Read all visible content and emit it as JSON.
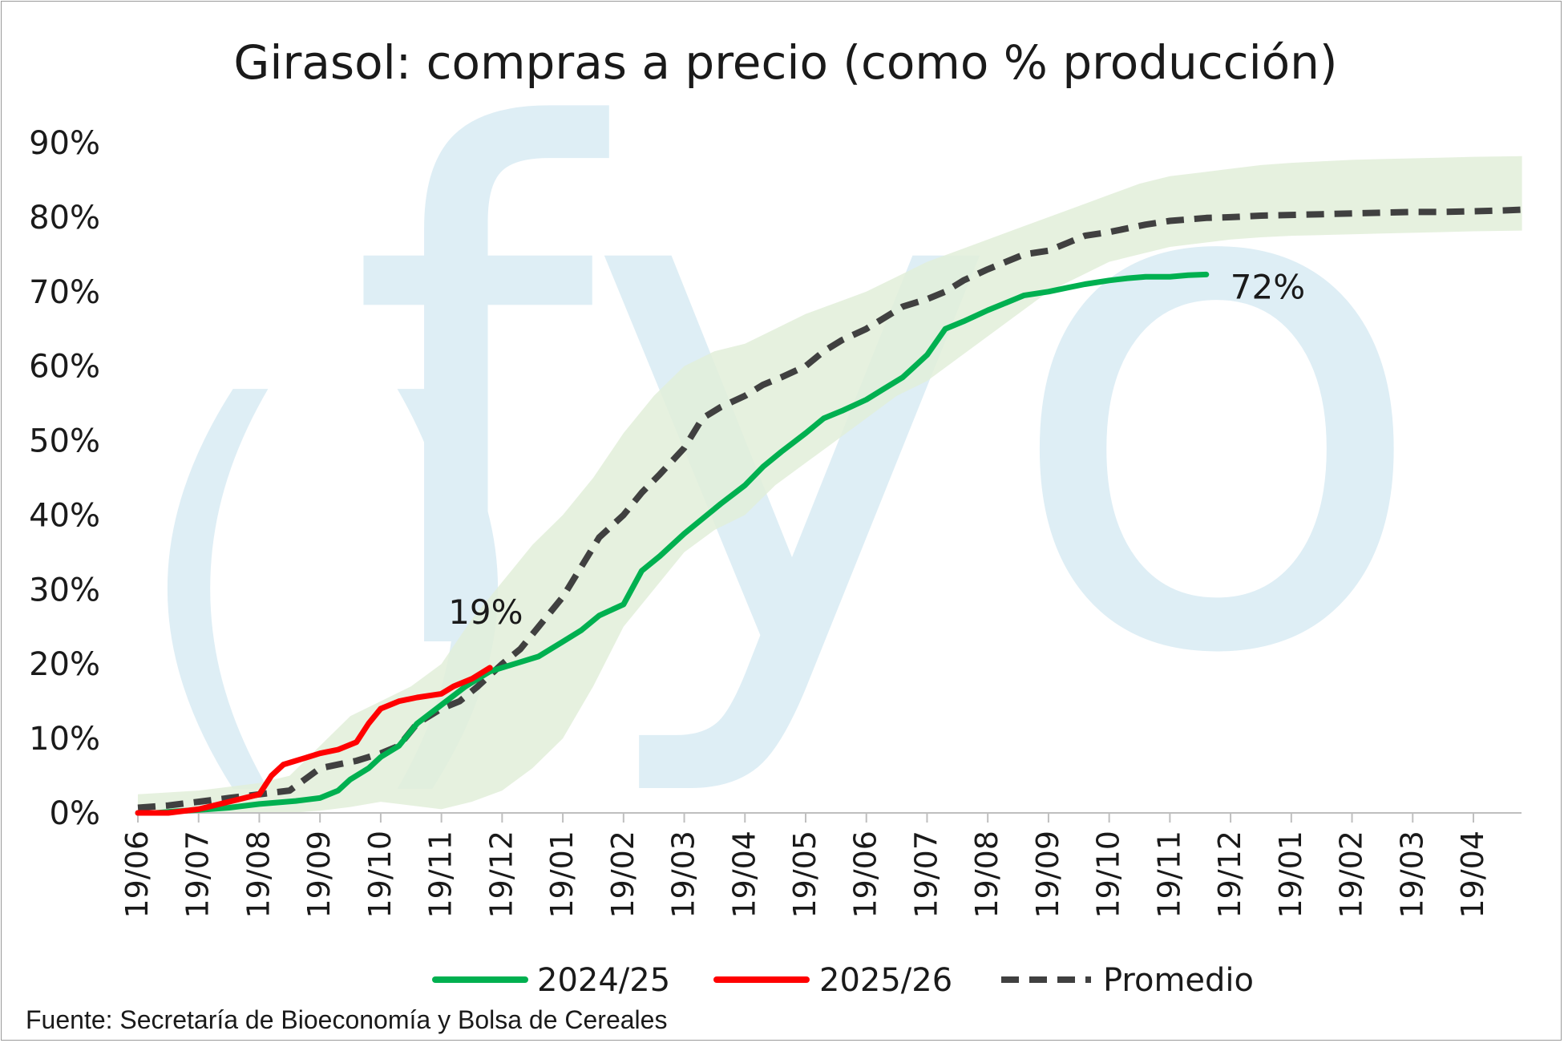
{
  "chart_data": {
    "type": "line",
    "title": "Girasol: compras a precio (como % producción)",
    "source": "Fuente: Secretaría de Bioeconomía y Bolsa de Cereales",
    "watermark": "fyo",
    "ylim": [
      0,
      90
    ],
    "y_ticks": [
      "0%",
      "10%",
      "20%",
      "30%",
      "40%",
      "50%",
      "60%",
      "70%",
      "80%",
      "90%"
    ],
    "x_ticks": [
      "19/06",
      "19/07",
      "19/08",
      "19/09",
      "19/10",
      "19/11",
      "19/12",
      "19/01",
      "19/02",
      "19/03",
      "19/04",
      "19/05",
      "19/06",
      "19/07",
      "19/08",
      "19/09",
      "19/10",
      "19/11",
      "19/12",
      "19/01",
      "19/02",
      "19/03",
      "19/04"
    ],
    "grid": false,
    "legend_position": "bottom",
    "colors": {
      "s2425": "#00b050",
      "s2526": "#ff0000",
      "avg": "#404040",
      "band": "#e2efd9",
      "watermark": "#deeef5"
    },
    "series": [
      {
        "name": "2024/25",
        "x": [
          0,
          0.3,
          0.6,
          1,
          1.5,
          2,
          2.3,
          2.6,
          3,
          3.3,
          3.5,
          3.8,
          4,
          4.3,
          4.6,
          5,
          5.4,
          5.8,
          6.2,
          6.6,
          7,
          7.3,
          7.6,
          8,
          8.3,
          8.6,
          9,
          9.3,
          9.6,
          10,
          10.3,
          10.6,
          11,
          11.3,
          11.6,
          12,
          12.3,
          12.6,
          13,
          13.3,
          13.6,
          14,
          14.3,
          14.6,
          15,
          15.3,
          15.6,
          16,
          16.3,
          16.6,
          17,
          17.3,
          17.6
        ],
        "values": [
          0,
          0,
          0.2,
          0.4,
          0.7,
          1.2,
          1.4,
          1.6,
          2,
          3,
          4.5,
          6,
          7.5,
          9,
          12,
          14.5,
          17,
          19,
          20,
          21,
          23,
          24.5,
          26.5,
          28,
          32.5,
          34.5,
          37.5,
          39.5,
          41.5,
          44,
          46.5,
          48.5,
          51,
          53,
          54,
          55.5,
          57,
          58.5,
          61.5,
          65,
          66,
          67.5,
          68.5,
          69.5,
          70,
          70.5,
          71,
          71.5,
          71.8,
          72,
          72,
          72.2,
          72.3
        ],
        "end_label": "72%"
      },
      {
        "name": "2025/26",
        "x": [
          0,
          0.5,
          1,
          1.5,
          2,
          2.2,
          2.4,
          2.6,
          3,
          3.3,
          3.6,
          3.8,
          4,
          4.3,
          4.6,
          5,
          5.2,
          5.5,
          5.8
        ],
        "values": [
          0,
          0,
          0.5,
          1.5,
          2.5,
          5,
          6.5,
          7,
          8,
          8.5,
          9.5,
          12,
          14,
          15,
          15.5,
          16,
          17,
          18,
          19.5
        ],
        "end_label": "19%"
      },
      {
        "name": "Promedio",
        "x": [
          0,
          0.5,
          1,
          1.5,
          2,
          2.5,
          3,
          3.3,
          3.6,
          4,
          4.3,
          4.6,
          5,
          5.3,
          5.6,
          6,
          6.3,
          6.6,
          7,
          7.3,
          7.6,
          8,
          8.3,
          8.6,
          9,
          9.3,
          9.6,
          10,
          10.3,
          10.6,
          11,
          11.3,
          11.6,
          12,
          12.3,
          12.6,
          13,
          13.3,
          13.6,
          14,
          14.3,
          14.6,
          15,
          15.3,
          15.6,
          16,
          16.3,
          16.6,
          17,
          17.3,
          17.6,
          18,
          18.5,
          19,
          19.5,
          20,
          20.5,
          21,
          21.5,
          22,
          22.5,
          22.8
        ],
        "values": [
          0.7,
          1,
          1.5,
          2,
          2.5,
          3,
          6,
          6.5,
          7,
          8,
          9,
          12,
          14,
          15,
          17,
          20,
          22,
          25,
          29,
          33,
          37,
          40,
          43,
          45.5,
          49,
          53,
          54.5,
          56,
          57.5,
          58.5,
          60,
          62,
          63.5,
          65,
          66.5,
          68,
          69,
          70,
          71.5,
          73,
          74,
          75,
          75.5,
          76.5,
          77.5,
          78,
          78.5,
          79,
          79.5,
          79.7,
          79.9,
          80,
          80.2,
          80.3,
          80.4,
          80.5,
          80.6,
          80.7,
          80.7,
          80.8,
          80.9,
          81
        ]
      }
    ],
    "band": {
      "x": [
        0,
        1,
        2,
        2.5,
        3,
        3.5,
        4,
        4.5,
        5,
        5.5,
        6,
        6.5,
        7,
        7.5,
        8,
        8.5,
        9,
        9.5,
        10,
        10.5,
        11,
        11.5,
        12,
        12.5,
        13,
        13.5,
        14,
        14.5,
        15,
        15.5,
        16,
        16.5,
        17,
        17.5,
        18,
        18.5,
        19,
        19.5,
        20,
        20.5,
        21,
        21.5,
        22,
        22.8
      ],
      "lower": [
        0,
        0,
        0,
        0,
        0.3,
        0.8,
        1.5,
        1,
        0.5,
        1.5,
        3,
        6,
        10,
        17,
        25,
        30,
        35,
        38,
        40,
        44,
        47,
        50,
        53,
        56,
        58,
        61,
        64,
        67,
        70,
        72,
        74,
        75,
        76,
        76.5,
        77,
        77.3,
        77.5,
        77.6,
        77.7,
        77.8,
        77.9,
        78,
        78.1,
        78.2
      ],
      "upper": [
        2.5,
        3,
        4,
        5,
        9,
        13,
        15,
        17,
        20,
        26,
        31,
        36,
        40,
        45,
        51,
        56,
        60,
        62,
        63,
        65,
        67,
        68.5,
        70,
        72,
        74,
        75.5,
        77,
        78.5,
        80,
        81.5,
        83,
        84.5,
        85.5,
        86,
        86.5,
        87,
        87.3,
        87.5,
        87.7,
        87.8,
        87.9,
        88,
        88.1,
        88.2
      ]
    }
  }
}
